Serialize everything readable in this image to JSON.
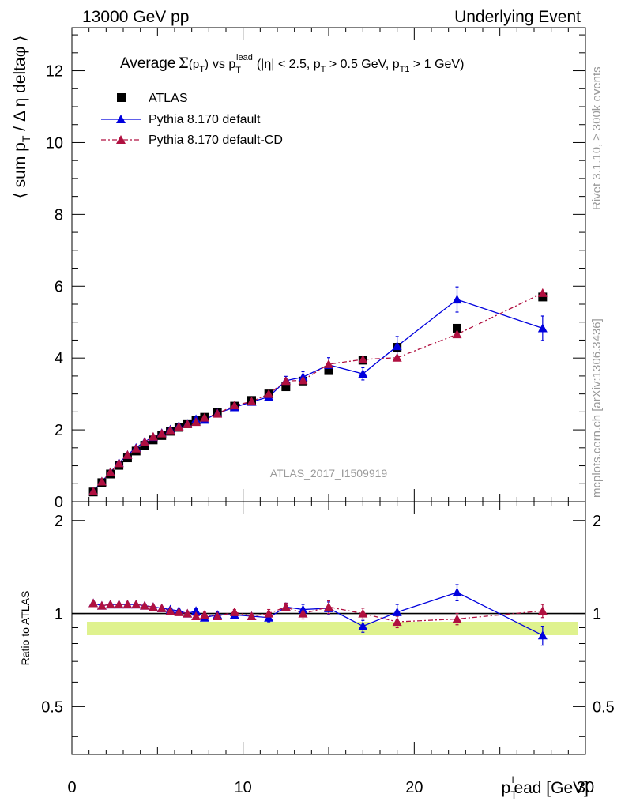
{
  "header": {
    "energy_label": "13000 GeV pp",
    "process_label": "Underlying Event"
  },
  "side_labels": {
    "rivet": "Rivet 3.1.10, ≥ 300k events",
    "mcplots": "mcplots.cern.ch [arXiv:1306.3436]"
  },
  "analysis_tag": "ATLAS_2017_I1509919",
  "chart_data": [
    {
      "type": "scatter",
      "panel": "main",
      "title": "Average Σ(p_T) vs p_T^lead (|η| < 2.5, p_T > 0.5 GeV, p_T1 > 1 GeV)",
      "ylabel": "⟨ sum p_T / Δη deltaφ ⟩",
      "xlim": [
        0,
        30
      ],
      "ylim": [
        0,
        13.2
      ],
      "yticks": [
        0,
        2,
        4,
        6,
        8,
        10,
        12
      ],
      "xticks": [
        0,
        10,
        20,
        30
      ],
      "legend_position": "top-left",
      "series": [
        {
          "name": "ATLAS",
          "marker": "square",
          "color": "#000000",
          "x": [
            1.25,
            1.75,
            2.25,
            2.75,
            3.25,
            3.75,
            4.25,
            4.75,
            5.25,
            5.75,
            6.25,
            6.75,
            7.25,
            7.75,
            8.5,
            9.5,
            10.5,
            11.5,
            12.5,
            13.5,
            15,
            17,
            19,
            22.5,
            27.5
          ],
          "y": [
            0.27,
            0.53,
            0.77,
            1.01,
            1.22,
            1.41,
            1.57,
            1.72,
            1.84,
            1.96,
            2.07,
            2.17,
            2.26,
            2.35,
            2.48,
            2.66,
            2.82,
            3.0,
            3.2,
            3.36,
            3.65,
            3.94,
            4.3,
            4.83,
            5.7
          ]
        },
        {
          "name": "Pythia 8.170 default",
          "marker": "triangle",
          "color": "#0000dd",
          "x": [
            1.25,
            1.75,
            2.25,
            2.75,
            3.25,
            3.75,
            4.25,
            4.75,
            5.25,
            5.75,
            6.25,
            6.75,
            7.25,
            7.75,
            8.5,
            9.5,
            10.5,
            11.5,
            12.5,
            13.5,
            15,
            17,
            19,
            22.5,
            27.5
          ],
          "y": [
            0.29,
            0.56,
            0.82,
            1.08,
            1.3,
            1.5,
            1.67,
            1.8,
            1.91,
            2.01,
            2.11,
            2.17,
            2.3,
            2.28,
            2.46,
            2.63,
            2.78,
            2.92,
            3.37,
            3.47,
            3.81,
            3.56,
            4.33,
            5.63,
            4.83
          ],
          "yerr": [
            0.01,
            0.01,
            0.01,
            0.02,
            0.02,
            0.02,
            0.02,
            0.02,
            0.02,
            0.03,
            0.03,
            0.03,
            0.04,
            0.04,
            0.05,
            0.06,
            0.07,
            0.09,
            0.12,
            0.15,
            0.2,
            0.17,
            0.27,
            0.35,
            0.34
          ]
        },
        {
          "name": "Pythia 8.170 default-CD",
          "marker": "triangle",
          "color": "#b01040",
          "x": [
            1.25,
            1.75,
            2.25,
            2.75,
            3.25,
            3.75,
            4.25,
            4.75,
            5.25,
            5.75,
            6.25,
            6.75,
            7.25,
            7.75,
            8.5,
            9.5,
            10.5,
            11.5,
            12.5,
            13.5,
            15,
            17,
            19,
            22.5,
            27.5
          ],
          "y": [
            0.29,
            0.56,
            0.82,
            1.07,
            1.3,
            1.48,
            1.66,
            1.81,
            1.9,
            1.99,
            2.09,
            2.16,
            2.22,
            2.34,
            2.45,
            2.68,
            2.79,
            3.0,
            3.36,
            3.38,
            3.83,
            3.96,
            4.01,
            4.66,
            5.81
          ]
        }
      ]
    },
    {
      "type": "scatter",
      "panel": "ratio",
      "ylabel": "Ratio to ATLAS",
      "xlabel": "p_T^lead [GeV]",
      "xlim": [
        0,
        30
      ],
      "ylim": [
        0.35,
        2.3
      ],
      "scale": "log",
      "ytick_labels": [
        "0.5",
        "1",
        "2"
      ],
      "xticks": [
        0,
        10,
        20,
        30
      ],
      "band_color": "#d9f07a",
      "series": [
        {
          "name": "Pythia 8.170 default",
          "color": "#0000dd",
          "x": [
            1.25,
            1.75,
            2.25,
            2.75,
            3.25,
            3.75,
            4.25,
            4.75,
            5.25,
            5.75,
            6.25,
            6.75,
            7.25,
            7.75,
            8.5,
            9.5,
            10.5,
            11.5,
            12.5,
            13.5,
            15,
            17,
            19,
            22.5,
            27.5
          ],
          "y": [
            1.08,
            1.06,
            1.07,
            1.07,
            1.07,
            1.07,
            1.06,
            1.05,
            1.04,
            1.03,
            1.02,
            1.0,
            1.02,
            0.97,
            0.99,
            0.99,
            0.98,
            0.97,
            1.05,
            1.03,
            1.04,
            0.91,
            1.01,
            1.17,
            0.85
          ],
          "yerr": [
            0.01,
            0.01,
            0.01,
            0.01,
            0.01,
            0.01,
            0.01,
            0.01,
            0.01,
            0.01,
            0.01,
            0.01,
            0.02,
            0.02,
            0.02,
            0.02,
            0.02,
            0.03,
            0.03,
            0.04,
            0.05,
            0.04,
            0.06,
            0.07,
            0.06
          ]
        },
        {
          "name": "Pythia 8.170 default-CD",
          "color": "#b01040",
          "x": [
            1.25,
            1.75,
            2.25,
            2.75,
            3.25,
            3.75,
            4.25,
            4.75,
            5.25,
            5.75,
            6.25,
            6.75,
            7.25,
            7.75,
            8.5,
            9.5,
            10.5,
            11.5,
            12.5,
            13.5,
            15,
            17,
            19,
            22.5,
            27.5
          ],
          "y": [
            1.08,
            1.06,
            1.07,
            1.07,
            1.07,
            1.07,
            1.06,
            1.05,
            1.04,
            1.02,
            1.01,
            1.0,
            0.98,
            0.99,
            0.98,
            1.01,
            0.98,
            1.0,
            1.05,
            1.0,
            1.05,
            1.0,
            0.94,
            0.96,
            1.02
          ],
          "yerr": [
            0.01,
            0.01,
            0.01,
            0.01,
            0.01,
            0.01,
            0.01,
            0.01,
            0.01,
            0.01,
            0.01,
            0.01,
            0.02,
            0.02,
            0.02,
            0.02,
            0.02,
            0.03,
            0.03,
            0.04,
            0.05,
            0.04,
            0.04,
            0.04,
            0.05
          ]
        }
      ]
    }
  ]
}
